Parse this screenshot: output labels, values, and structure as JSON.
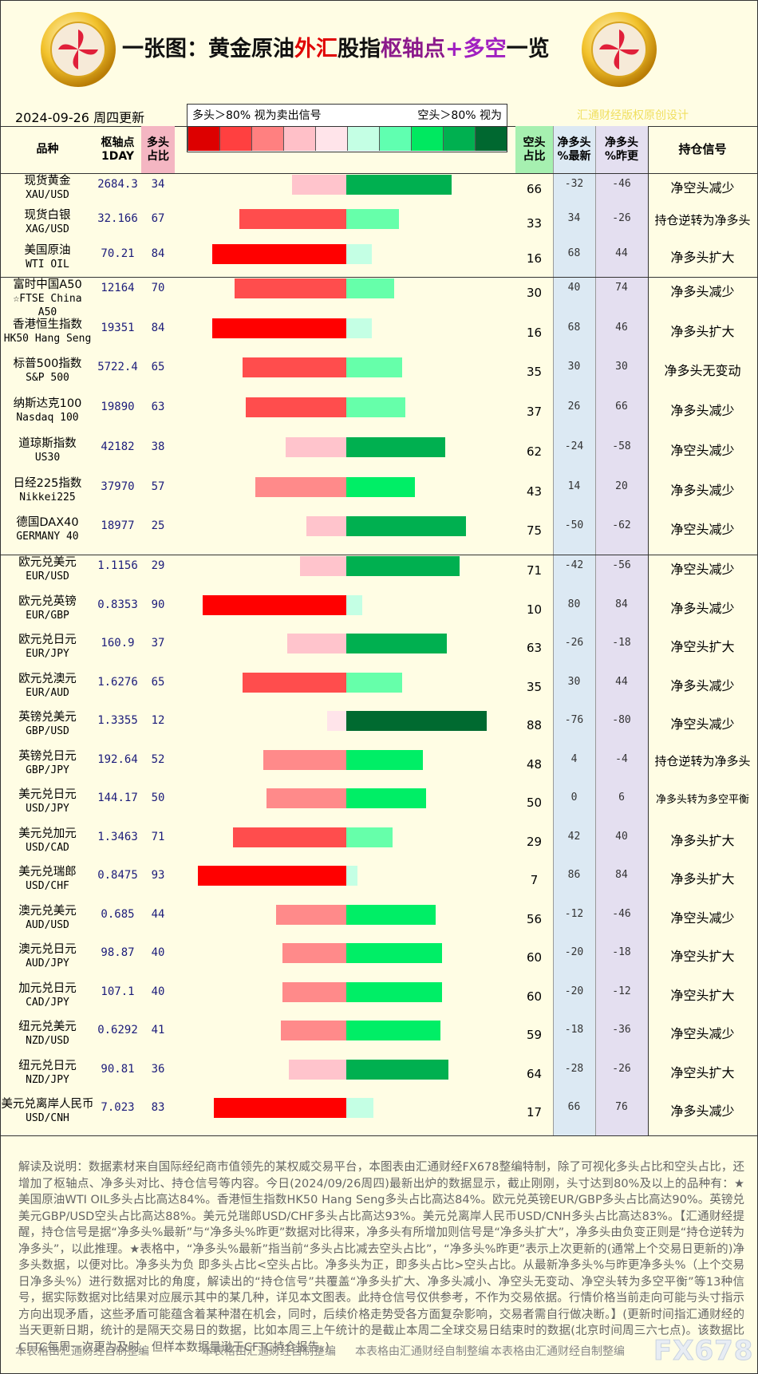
{
  "header": {
    "title_parts": [
      {
        "text": "一张图：黄金原油",
        "color": "#111111"
      },
      {
        "text": "外汇",
        "color": "#e00000"
      },
      {
        "text": "股指",
        "color": "#111111"
      },
      {
        "text": "枢轴点",
        "color": "#8b1a8b"
      },
      {
        "text": "+多空",
        "color": "#a020c0"
      },
      {
        "text": "一览",
        "color": "#111111"
      }
    ],
    "date": "2024-09-26 周四更新",
    "copyright": "汇通财经版权原创设计"
  },
  "legend": {
    "left_text": "多头＞80% 视为卖出信号",
    "right_text": "空头＞80% 视为",
    "colors": [
      "#dd0000",
      "#ff4040",
      "#ff8080",
      "#ffc0c8",
      "#ffe4ea",
      "#c4ffe4",
      "#60ffb0",
      "#00e860",
      "#00b050",
      "#006830"
    ]
  },
  "table": {
    "columns": [
      "品种",
      "枢轴点\n1DAY",
      "多头\n占比",
      "空头\n占比",
      "净多头\n%最新",
      "净多头\n%昨更",
      "持仓信号"
    ],
    "groups": [
      [
        {
          "name": "现货黄金",
          "code": "XAU/USD",
          "pivot": 2684.3,
          "long": 34,
          "short": 66,
          "net_latest": -32,
          "net_prev": -46,
          "signal": "净空头减少",
          "long_color": "#ffc4cc",
          "short_color": "#00b050"
        },
        {
          "name": "现货白银",
          "code": "XAG/USD",
          "pivot": 32.166,
          "long": 67,
          "short": 33,
          "net_latest": 34,
          "net_prev": -26,
          "signal": "持仓逆转为净多头",
          "long_color": "#ff4d4d",
          "short_color": "#66ffaa"
        },
        {
          "name": "美国原油",
          "code": "WTI OIL",
          "pivot": 70.21,
          "long": 84,
          "short": 16,
          "net_latest": 68,
          "net_prev": 44,
          "signal": "净多头扩大",
          "long_color": "#ff0000",
          "short_color": "#c4ffe4"
        }
      ],
      [
        {
          "name": "富时中国A50",
          "code": "☆FTSE China A50",
          "pivot": 12164,
          "long": 70,
          "short": 30,
          "net_latest": 40,
          "net_prev": 74,
          "signal": "净多头减少",
          "long_color": "#ff4d4d",
          "short_color": "#66ffaa"
        },
        {
          "name": "香港恒生指数",
          "code": "HK50 Hang Seng",
          "pivot": 19351,
          "long": 84,
          "short": 16,
          "net_latest": 68,
          "net_prev": 46,
          "signal": "净多头扩大",
          "long_color": "#ff0000",
          "short_color": "#c4ffe4"
        },
        {
          "name": "标普500指数",
          "code": "S&P 500",
          "pivot": 5722.4,
          "long": 65,
          "short": 35,
          "net_latest": 30,
          "net_prev": 30,
          "signal": "净多头无变动",
          "long_color": "#ff4d4d",
          "short_color": "#66ffaa"
        },
        {
          "name": "纳斯达克100",
          "code": "Nasdaq 100",
          "pivot": 19890,
          "long": 63,
          "short": 37,
          "net_latest": 26,
          "net_prev": 66,
          "signal": "净多头减少",
          "long_color": "#ff4d4d",
          "short_color": "#66ffaa"
        },
        {
          "name": "道琼斯指数",
          "code": "US30",
          "pivot": 42182,
          "long": 38,
          "short": 62,
          "net_latest": -24,
          "net_prev": -58,
          "signal": "净空头减少",
          "long_color": "#ffc4cc",
          "short_color": "#00b050"
        },
        {
          "name": "日经225指数",
          "code": "Nikkei225",
          "pivot": 37970,
          "long": 57,
          "short": 43,
          "net_latest": 14,
          "net_prev": 20,
          "signal": "净多头减少",
          "long_color": "#ff8a8a",
          "short_color": "#00ee66"
        },
        {
          "name": "德国DAX40",
          "code": "GERMANY 40",
          "pivot": 18977,
          "long": 25,
          "short": 75,
          "net_latest": -50,
          "net_prev": -62,
          "signal": "净空头减少",
          "long_color": "#ffc4cc",
          "short_color": "#00b050"
        }
      ],
      [
        {
          "name": "欧元兑美元",
          "code": "EUR/USD",
          "pivot": 1.1156,
          "long": 29,
          "short": 71,
          "net_latest": -42,
          "net_prev": -56,
          "signal": "净空头减少",
          "long_color": "#ffc4cc",
          "short_color": "#00b050"
        },
        {
          "name": "欧元兑英镑",
          "code": "EUR/GBP",
          "pivot": 0.8353,
          "long": 90,
          "short": 10,
          "net_latest": 80,
          "net_prev": 84,
          "signal": "净多头减少",
          "long_color": "#ff0000",
          "short_color": "#c4ffe4"
        },
        {
          "name": "欧元兑日元",
          "code": "EUR/JPY",
          "pivot": 160.9,
          "long": 37,
          "short": 63,
          "net_latest": -26,
          "net_prev": -18,
          "signal": "净空头扩大",
          "long_color": "#ffc4cc",
          "short_color": "#00b050"
        },
        {
          "name": "欧元兑澳元",
          "code": "EUR/AUD",
          "pivot": 1.6276,
          "long": 65,
          "short": 35,
          "net_latest": 30,
          "net_prev": 44,
          "signal": "净多头减少",
          "long_color": "#ff4d4d",
          "short_color": "#66ffaa"
        },
        {
          "name": "英镑兑美元",
          "code": "GBP/USD",
          "pivot": 1.3355,
          "long": 12,
          "short": 88,
          "net_latest": -76,
          "net_prev": -80,
          "signal": "净空头减少",
          "long_color": "#ffe4ea",
          "short_color": "#006a30"
        },
        {
          "name": "英镑兑日元",
          "code": "GBP/JPY",
          "pivot": 192.64,
          "long": 52,
          "short": 48,
          "net_latest": 4,
          "net_prev": -4,
          "signal": "持仓逆转为净多头",
          "long_color": "#ff8a8a",
          "short_color": "#00ee66"
        },
        {
          "name": "美元兑日元",
          "code": "USD/JPY",
          "pivot": 144.17,
          "long": 50,
          "short": 50,
          "net_latest": 0,
          "net_prev": 6,
          "signal": "净多头转为多空平衡",
          "long_color": "#ff8a8a",
          "short_color": "#00ee66"
        },
        {
          "name": "美元兑加元",
          "code": "USD/CAD",
          "pivot": 1.3463,
          "long": 71,
          "short": 29,
          "net_latest": 42,
          "net_prev": 40,
          "signal": "净多头扩大",
          "long_color": "#ff4d4d",
          "short_color": "#66ffaa"
        },
        {
          "name": "美元兑瑞郎",
          "code": "USD/CHF",
          "pivot": 0.8475,
          "long": 93,
          "short": 7,
          "net_latest": 86,
          "net_prev": 84,
          "signal": "净多头扩大",
          "long_color": "#ff0000",
          "short_color": "#c4ffe4"
        },
        {
          "name": "澳元兑美元",
          "code": "AUD/USD",
          "pivot": 0.685,
          "long": 44,
          "short": 56,
          "net_latest": -12,
          "net_prev": -46,
          "signal": "净空头减少",
          "long_color": "#ff8a8a",
          "short_color": "#00ee66"
        },
        {
          "name": "澳元兑日元",
          "code": "AUD/JPY",
          "pivot": 98.87,
          "long": 40,
          "short": 60,
          "net_latest": -20,
          "net_prev": -18,
          "signal": "净空头扩大",
          "long_color": "#ff8a8a",
          "short_color": "#00ee66"
        },
        {
          "name": "加元兑日元",
          "code": "CAD/JPY",
          "pivot": 107.1,
          "long": 40,
          "short": 60,
          "net_latest": -20,
          "net_prev": -12,
          "signal": "净空头扩大",
          "long_color": "#ff8a8a",
          "short_color": "#00ee66"
        },
        {
          "name": "纽元兑美元",
          "code": "NZD/USD",
          "pivot": 0.6292,
          "long": 41,
          "short": 59,
          "net_latest": -18,
          "net_prev": -36,
          "signal": "净空头减少",
          "long_color": "#ff8a8a",
          "short_color": "#00ee66"
        },
        {
          "name": "纽元兑日元",
          "code": "NZD/JPY",
          "pivot": 90.81,
          "long": 36,
          "short": 64,
          "net_latest": -28,
          "net_prev": -26,
          "signal": "净空头扩大",
          "long_color": "#ffc4cc",
          "short_color": "#00b050"
        },
        {
          "name": "美元兑离岸人民币",
          "code": "USD/CNH",
          "pivot": 7.023,
          "long": 83,
          "short": 17,
          "net_latest": 66,
          "net_prev": 76,
          "signal": "净多头减少",
          "long_color": "#ff0000",
          "short_color": "#c4ffe4"
        }
      ]
    ]
  },
  "footer": {
    "note": "解读及说明：数据素材来自国际经纪商市值领先的某权威交易平台，本图表由汇通财经FX678整编特制，除了可视化多头占比和空头占比，还增加了枢轴点、净多头对比、持仓信号等内容。今日(2024/09/26周四)最新出炉的数据显示，截止刚刚，头寸达到80%及以上的品种有：★ 美国原油WTI OIL多头占比高达84%。香港恒生指数HK50 Hang Seng多头占比高达84%。欧元兑英镑EUR/GBP多头占比高达90%。英镑兑美元GBP/USD空头占比高达88%。美元兑瑞郎USD/CHF多头占比高达93%。美元兑离岸人民币USD/CNH多头占比高达83%。【汇通财经提醒，持仓信号是据“净多头%最新”与“净多头%昨更”数据对比得来，净多头有所增加则信号是“净多头扩大”，净多头由负变正则是“持仓逆转为净多头”，以此推理。★表格中，“净多头%最新”指当前“多头占比减去空头占比”，“净多头%昨更”表示上次更新的(通常上个交易日更新的)净多头数据，以便对比。净多头为负 即多头占比<空头占比。净多头为正，即多头占比>空头占比。从最新净多头%与昨更净多头%（上个交易日净多头%）进行数据对比的角度，解读出的“持仓信号”共覆盖“净多头扩大、净多头减小、净空头无变动、净空头转为多空平衡”等13种信号，据实际数据对比结果对应展示其中的某几种，详见本文图表。此持仓信号仅供参考，不作为交易依据。行情价格当前走向可能与头寸指示方向出现矛盾，这些矛盾可能蕴含着某种潜在机会，同时，后续价格走势受各方面复杂影响，交易者需自行做决断。】(更新时间指汇通财经的当天更新日期，统计的是隔天交易日的数据，比如本周三上午统计的是截止本周二全球交易日结束时的数据(北京时间周三六七点)。该数据比CFTC每周一次更为及时，但样本数据量逊于CFTC持仓报告。)",
    "credits": [
      "本表格由汇通财经自制整编",
      "本表格由汇通财经自制整编",
      "本表格由汇通财经自制整编",
      "本表格由汇通财经自制整编"
    ],
    "brand": "FX678"
  }
}
